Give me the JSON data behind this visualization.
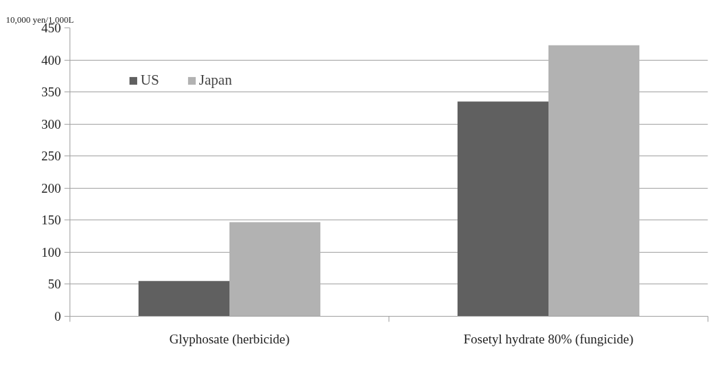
{
  "chart_data": {
    "type": "bar",
    "ylabel": "10,000 yen/1,000L",
    "categories": [
      "Glyphosate (herbicide)",
      "Fosetyl hydrate 80% (fungicide)"
    ],
    "series": [
      {
        "name": "US",
        "color": "#606060",
        "values": [
          55,
          335
        ]
      },
      {
        "name": "Japan",
        "color": "#b2b2b2",
        "values": [
          147,
          423
        ]
      }
    ],
    "ylim": [
      0,
      450
    ],
    "yticks": [
      0,
      50,
      100,
      150,
      200,
      250,
      300,
      350,
      400,
      450
    ],
    "grid": "y",
    "legend": "top left"
  }
}
